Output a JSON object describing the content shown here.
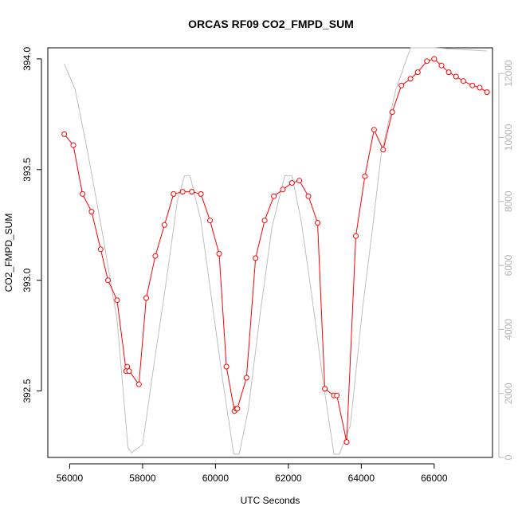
{
  "chart_data": {
    "type": "line",
    "title": "ORCAS RF09 CO2_FMPD_SUM",
    "xlabel": "UTC Seconds",
    "ylabel": "CO2_FMPD_SUM",
    "xlim": [
      55400,
      67600
    ],
    "ylim": [
      392.2,
      394.05
    ],
    "y2lim": [
      0,
      12800
    ],
    "x_ticks": [
      "56000",
      "58000",
      "60000",
      "62000",
      "64000",
      "66000"
    ],
    "y_ticks": [
      "392.5",
      "393.0",
      "393.5",
      "394.0"
    ],
    "y2_ticks": [
      "0",
      "2000",
      "4000",
      "6000",
      "8000",
      "10000",
      "12000"
    ],
    "colors": {
      "co2": "#ff0000",
      "altitude": "#bebebe",
      "axis": "#000000",
      "right_axis": "#b3b3b3"
    },
    "series": [
      {
        "key": "co2",
        "style": "line+circles",
        "x": [
          55850,
          56100,
          56350,
          56600,
          56850,
          57050,
          57300,
          57550,
          57580,
          57630,
          57900,
          58100,
          58350,
          58600,
          58850,
          59100,
          59350,
          59600,
          59850,
          60100,
          60300,
          60520,
          60570,
          60600,
          60850,
          61100,
          61350,
          61600,
          61850,
          62100,
          62300,
          62550,
          62800,
          63000,
          63250,
          63330,
          63600,
          63850,
          64100,
          64350,
          64600,
          64850,
          65100,
          65350,
          65550,
          65800,
          66000,
          66200,
          66400,
          66600,
          66800,
          67050,
          67250,
          67450
        ],
        "y": [
          393.66,
          393.61,
          393.39,
          393.31,
          393.14,
          393.0,
          392.91,
          392.59,
          392.61,
          392.59,
          392.53,
          392.92,
          393.11,
          393.25,
          393.39,
          393.4,
          393.4,
          393.39,
          393.27,
          393.12,
          392.61,
          392.41,
          392.42,
          392.42,
          392.56,
          393.1,
          393.27,
          393.38,
          393.41,
          393.44,
          393.45,
          393.38,
          393.26,
          392.51,
          392.48,
          392.48,
          392.27,
          393.2,
          393.47,
          393.68,
          393.59,
          393.76,
          393.88,
          393.91,
          393.94,
          393.99,
          394.0,
          393.97,
          393.94,
          393.92,
          393.9,
          393.88,
          393.87,
          393.85
        ]
      },
      {
        "key": "altitude",
        "style": "line",
        "axis": "right",
        "x": [
          55850,
          56150,
          56500,
          56900,
          57300,
          57600,
          57700,
          58000,
          58300,
          58650,
          58950,
          59150,
          59300,
          59600,
          59900,
          60200,
          60500,
          60650,
          60900,
          61250,
          61550,
          61900,
          62100,
          62350,
          62650,
          62950,
          63250,
          63400,
          63700,
          64050,
          64300,
          64550,
          64950,
          65350,
          66000,
          66700,
          67450
        ],
        "y": [
          12300,
          11500,
          9500,
          7000,
          4300,
          300,
          150,
          400,
          2800,
          5500,
          8000,
          8800,
          8800,
          7400,
          4900,
          2400,
          100,
          100,
          1500,
          4700,
          7200,
          8800,
          8800,
          7400,
          5000,
          2400,
          100,
          100,
          1000,
          4800,
          7100,
          9500,
          11500,
          12800,
          12800,
          12750,
          12700
        ]
      }
    ]
  }
}
